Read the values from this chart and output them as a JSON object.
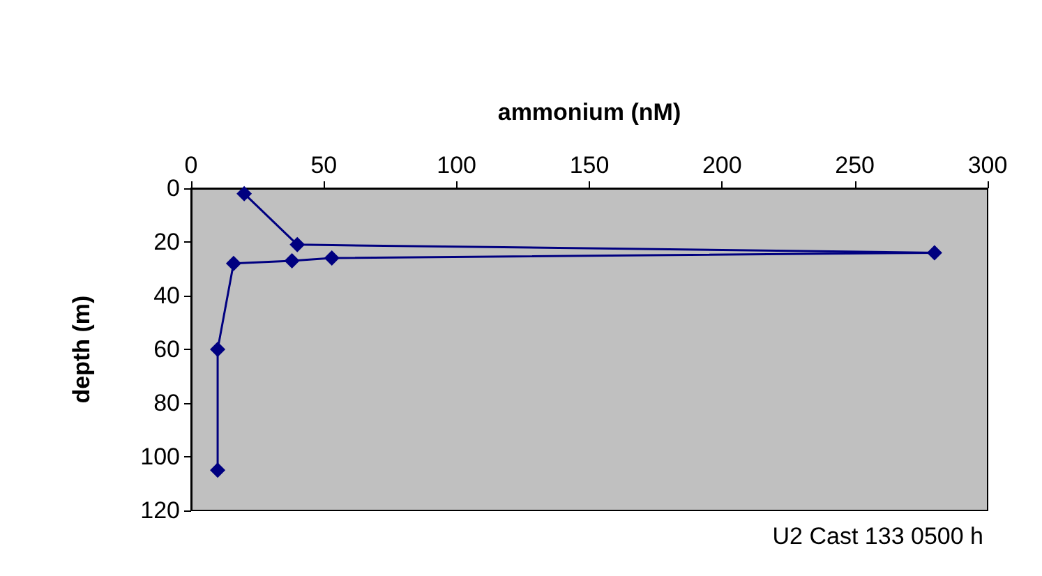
{
  "chart_data": {
    "type": "line",
    "xlabel": "ammonium (nM)",
    "ylabel": "depth (m)",
    "x": [
      20,
      40,
      280,
      53,
      38,
      16,
      10,
      10
    ],
    "values": [
      2,
      21,
      24,
      26,
      27,
      28,
      60,
      105
    ],
    "color": "#000080",
    "marker": "diamond",
    "line_style": "solid",
    "xlim": [
      0,
      300
    ],
    "xticks": [
      0,
      50,
      100,
      150,
      200,
      250,
      300
    ],
    "ylim": [
      120,
      0
    ],
    "yticks": [
      0,
      20,
      40,
      60,
      80,
      100,
      120
    ],
    "grid": false,
    "annotations": [
      "U2 Cast 133 0500 h"
    ]
  }
}
